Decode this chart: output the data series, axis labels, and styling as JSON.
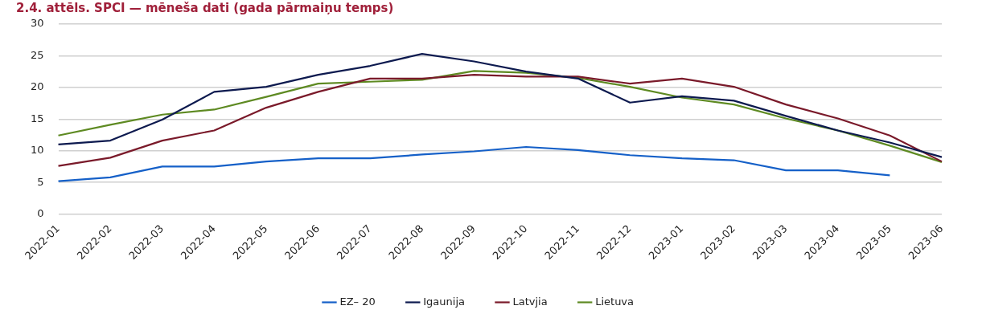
{
  "chart_data": {
    "type": "line",
    "title": "2.4. attēls. SPCI — mēneša dati (gada pārmaiņu temps)",
    "categories": [
      "2022-01",
      "2022-02",
      "2022-03",
      "2022-04",
      "2022-05",
      "2022-06",
      "2022-07",
      "2022-08",
      "2022-09",
      "2022-10",
      "2022-11",
      "2022-12",
      "2023-01",
      "2023-02",
      "2023-03",
      "2023-04",
      "2023-05",
      "2023-06"
    ],
    "series": [
      {
        "name": "EZ– 20",
        "color": "#1560c8",
        "values": [
          5.2,
          5.8,
          7.5,
          7.5,
          8.3,
          8.8,
          8.8,
          9.4,
          9.9,
          10.6,
          10.1,
          9.3,
          8.8,
          8.5,
          6.9,
          6.9,
          6.1,
          null
        ]
      },
      {
        "name": "Igaunija",
        "color": "#0d1a4f",
        "values": [
          11.0,
          11.6,
          14.9,
          19.3,
          20.1,
          22.0,
          23.4,
          25.3,
          24.1,
          22.5,
          21.4,
          17.6,
          18.6,
          17.9,
          15.5,
          13.2,
          11.3,
          9.0
        ]
      },
      {
        "name": "Latvjia",
        "color": "#7a1a2a",
        "values": [
          7.6,
          8.9,
          11.6,
          13.2,
          16.8,
          19.3,
          21.4,
          21.4,
          22.0,
          21.7,
          21.7,
          20.6,
          21.4,
          20.1,
          17.3,
          15.1,
          12.4,
          8.3
        ]
      },
      {
        "name": "Lietuva",
        "color": "#5e8a22",
        "values": [
          12.4,
          14.1,
          15.7,
          16.5,
          18.5,
          20.6,
          20.9,
          21.2,
          22.6,
          22.3,
          21.5,
          20.1,
          18.4,
          17.3,
          15.1,
          13.2,
          10.8,
          8.2
        ]
      }
    ],
    "ylim": [
      0,
      30
    ],
    "yticks": [
      0,
      5,
      10,
      15,
      20,
      25,
      30
    ],
    "grid": "y",
    "legend": "bottom",
    "marker": "none",
    "line_style": "solid"
  }
}
